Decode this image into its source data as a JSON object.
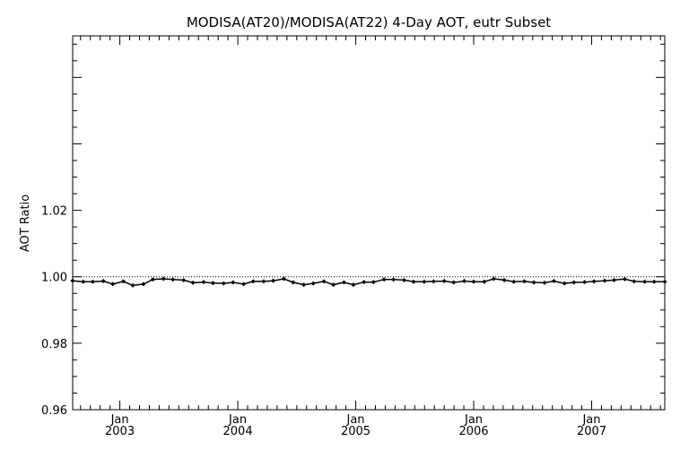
{
  "chart_data": {
    "type": "line",
    "title": "MODISA(AT20)/MODISA(AT22) 4-Day AOT, eutr Subset",
    "xlabel": "",
    "ylabel": "AOT Ratio",
    "ylim": [
      0.96,
      1.0725
    ],
    "xlim": [
      2002.6,
      2007.62
    ],
    "grid": false,
    "reference_line": 1.0,
    "y_ticks": [
      {
        "value": 0.96,
        "label": "0.96"
      },
      {
        "value": 0.98,
        "label": "0.98"
      },
      {
        "value": 1.0,
        "label": "1.00"
      },
      {
        "value": 1.02,
        "label": "1.02"
      }
    ],
    "x_ticks": [
      {
        "value": 2003.0,
        "month": "Jan",
        "year": "2003"
      },
      {
        "value": 2004.0,
        "month": "Jan",
        "year": "2004"
      },
      {
        "value": 2005.0,
        "month": "Jan",
        "year": "2005"
      },
      {
        "value": 2006.0,
        "month": "Jan",
        "year": "2006"
      },
      {
        "value": 2007.0,
        "month": "Jan",
        "year": "2007"
      }
    ],
    "series": [
      {
        "x": [
          2002.6,
          2002.69,
          2002.77,
          2002.86,
          2002.94,
          2003.03,
          2003.11,
          2003.2,
          2003.28,
          2003.37,
          2003.45,
          2003.54,
          2003.62,
          2003.71,
          2003.79,
          2003.88,
          2003.96,
          2004.05,
          2004.13,
          2004.22,
          2004.3,
          2004.39,
          2004.47,
          2004.56,
          2004.64,
          2004.73,
          2004.81,
          2004.9,
          2004.98,
          2005.07,
          2005.15,
          2005.24,
          2005.32,
          2005.41,
          2005.49,
          2005.58,
          2005.66,
          2005.75,
          2005.83,
          2005.92,
          2006.0,
          2006.09,
          2006.17,
          2006.26,
          2006.34,
          2006.43,
          2006.51,
          2006.6,
          2006.68,
          2006.77,
          2006.85,
          2006.94,
          2007.02,
          2007.11,
          2007.19,
          2007.28,
          2007.36,
          2007.45,
          2007.53,
          2007.62
        ],
        "values": [
          0.9988,
          0.9985,
          0.9985,
          0.9987,
          0.9978,
          0.9986,
          0.9974,
          0.9978,
          0.9992,
          0.9994,
          0.9992,
          0.999,
          0.9982,
          0.9984,
          0.9981,
          0.998,
          0.9983,
          0.9978,
          0.9986,
          0.9986,
          0.9988,
          0.9994,
          0.9983,
          0.9976,
          0.998,
          0.9986,
          0.9976,
          0.9983,
          0.9976,
          0.9984,
          0.9984,
          0.9992,
          0.9992,
          0.999,
          0.9985,
          0.9985,
          0.9986,
          0.9987,
          0.9983,
          0.9987,
          0.9985,
          0.9985,
          0.9994,
          0.999,
          0.9985,
          0.9986,
          0.9983,
          0.9982,
          0.9987,
          0.998,
          0.9983,
          0.9984,
          0.9986,
          0.9988,
          0.999,
          0.9993,
          0.9986,
          0.9985,
          0.9985,
          0.9985
        ]
      }
    ]
  }
}
